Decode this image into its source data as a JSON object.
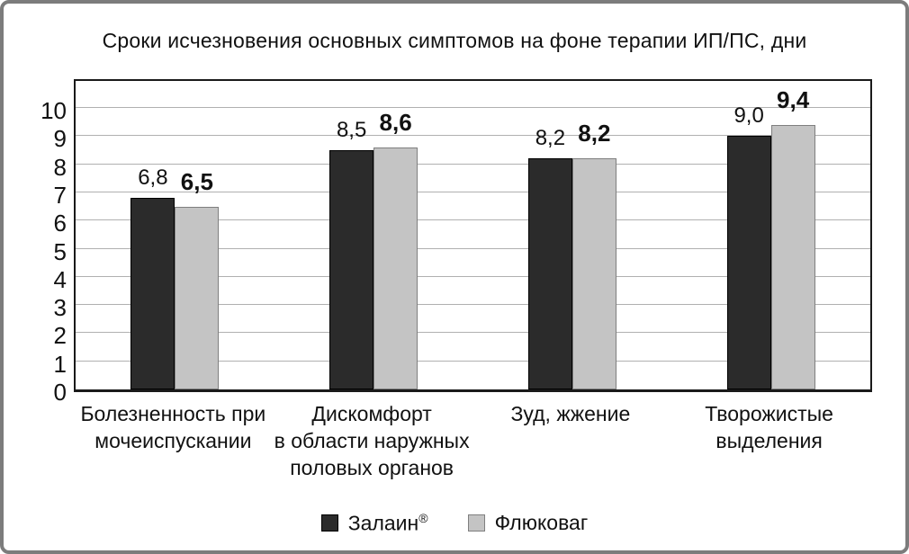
{
  "chart_data": {
    "type": "bar",
    "title": "Сроки исчезновения основных симптомов на фоне терапии ИП/ПС, дни",
    "categories": [
      "Болезненность при\nмочеиспускании",
      "Дискомфорт\nв области наружных\nполовых органов",
      "Зуд, жжение",
      "Творожистые\nвыделения"
    ],
    "series": [
      {
        "name": "Залаин",
        "reg_mark": "®",
        "values": [
          6.8,
          8.5,
          8.2,
          9.0
        ],
        "value_labels": [
          "6,8",
          "8,5",
          "8,2",
          "9,0"
        ],
        "color": "#2b2b2b",
        "label_style": "regular"
      },
      {
        "name": "Флюковаг",
        "reg_mark": "",
        "values": [
          6.5,
          8.6,
          8.2,
          9.4
        ],
        "value_labels": [
          "6,5",
          "8,6",
          "8,2",
          "9,4"
        ],
        "color": "#c4c4c4",
        "label_style": "bold"
      }
    ],
    "ylim": [
      0,
      10
    ],
    "ytick_step": 1,
    "yticks": [
      "0",
      "1",
      "2",
      "3",
      "4",
      "5",
      "6",
      "7",
      "8",
      "9",
      "10"
    ],
    "grid": true,
    "legend_position": "bottom",
    "xlabel": "",
    "ylabel": ""
  },
  "colors": {
    "dark_bar": "#2b2b2b",
    "light_bar": "#c4c4c4",
    "gridline": "#b0b0b0",
    "plot_border": "#1a1a1a",
    "outer_frame": "#7c7c7c",
    "text": "#111111"
  }
}
